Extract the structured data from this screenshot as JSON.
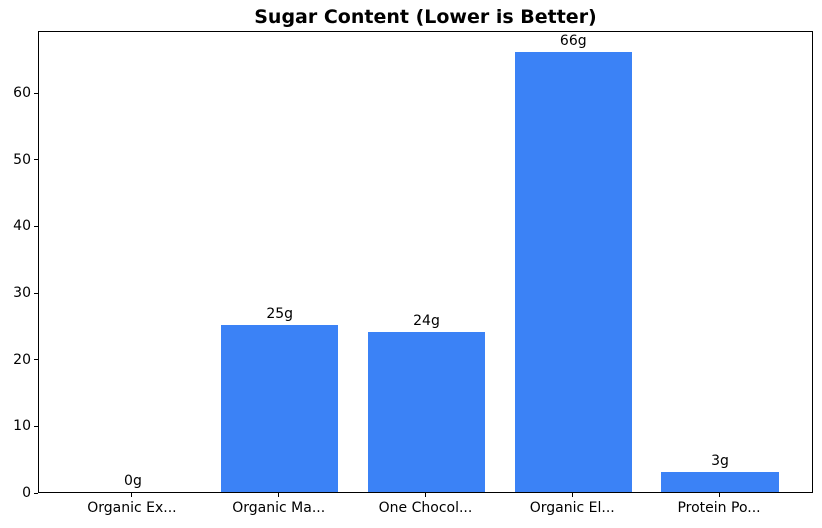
{
  "chart_data": {
    "type": "bar",
    "title": "Sugar Content (Lower is Better)",
    "categories": [
      "Organic Ex...",
      "Organic Ma...",
      "One Chocol...",
      "Organic El...",
      "Protein Po..."
    ],
    "values": [
      0,
      25,
      24,
      66,
      3
    ],
    "bar_labels": [
      "0g",
      "25g",
      "24g",
      "66g",
      "3g"
    ],
    "yticks": [
      "0",
      "10",
      "20",
      "30",
      "40",
      "50",
      "60"
    ],
    "ytick_values": [
      0,
      10,
      20,
      30,
      40,
      50,
      60
    ],
    "ylim": [
      0,
      69.3
    ],
    "xlabel": "",
    "ylabel": "",
    "bar_color": "#3b82f6",
    "text_color": "#000000",
    "axis_color": "#000000",
    "background_color": "#ffffff",
    "grid": false,
    "legend": null,
    "bar_width_fraction": 0.8
  }
}
